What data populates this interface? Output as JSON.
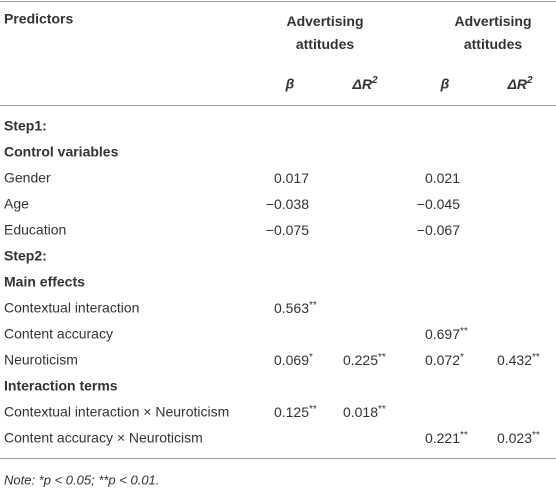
{
  "header": {
    "predictors": "Predictors",
    "groups": [
      "Advertising attitudes",
      "Advertising attitudes"
    ],
    "columns": [
      "β",
      "ΔR²",
      "β",
      "ΔR²"
    ]
  },
  "table": {
    "rows": [
      {
        "label": "Step1:",
        "bold": true,
        "cells": [
          null,
          null,
          null,
          null
        ]
      },
      {
        "label": "Control variables",
        "bold": true,
        "cells": [
          null,
          null,
          null,
          null
        ]
      },
      {
        "label": "Gender",
        "cells": [
          "0.017",
          null,
          "0.021",
          null
        ]
      },
      {
        "label": "Age",
        "cells": [
          "−0.038",
          null,
          "−0.045",
          null
        ]
      },
      {
        "label": "Education",
        "cells": [
          "−0.075",
          null,
          "−0.067",
          null
        ]
      },
      {
        "label": "Step2:",
        "bold": true,
        "cells": [
          null,
          null,
          null,
          null
        ]
      },
      {
        "label": "Main effects",
        "bold": true,
        "cells": [
          null,
          null,
          null,
          null
        ]
      },
      {
        "label": "Contextual interaction",
        "cells": [
          "0.563**",
          null,
          null,
          null
        ]
      },
      {
        "label": "Content accuracy",
        "cells": [
          null,
          null,
          "0.697**",
          null
        ]
      },
      {
        "label": "Neuroticism",
        "cells": [
          "0.069*",
          "0.225**",
          "0.072*",
          "0.432**"
        ]
      },
      {
        "label": "Interaction terms",
        "bold": true,
        "cells": [
          null,
          null,
          null,
          null
        ]
      },
      {
        "label": "Contextual interaction × Neuroticism",
        "cells": [
          "0.125**",
          "0.018**",
          null,
          null
        ]
      },
      {
        "label": "Content accuracy × Neuroticism",
        "cells": [
          null,
          null,
          "0.221**",
          "0.023**"
        ]
      }
    ]
  },
  "note": "Note: *p < 0.05; **p < 0.01."
}
